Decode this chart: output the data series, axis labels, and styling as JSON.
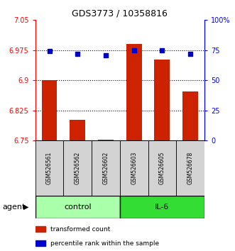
{
  "title": "GDS3773 / 10358816",
  "samples": [
    "GSM526561",
    "GSM526562",
    "GSM526602",
    "GSM526603",
    "GSM526605",
    "GSM526678"
  ],
  "red_values": [
    6.9,
    6.802,
    6.752,
    6.99,
    6.952,
    6.872
  ],
  "blue_values": [
    74,
    72,
    71,
    75,
    75,
    72
  ],
  "ylim_left": [
    6.75,
    7.05
  ],
  "ylim_right": [
    0,
    100
  ],
  "yticks_left": [
    6.75,
    6.825,
    6.9,
    6.975,
    7.05
  ],
  "yticks_right": [
    0,
    25,
    50,
    75,
    100
  ],
  "yticklabels_left": [
    "6.75",
    "6.825",
    "6.9",
    "6.975",
    "7.05"
  ],
  "yticklabels_right": [
    "0",
    "25",
    "50",
    "75",
    "100%"
  ],
  "grid_lines": [
    6.975,
    6.9,
    6.825
  ],
  "groups": [
    {
      "label": "control",
      "indices": [
        0,
        1,
        2
      ],
      "color": "#AAFFAA"
    },
    {
      "label": "IL-6",
      "indices": [
        3,
        4,
        5
      ],
      "color": "#33DD33"
    }
  ],
  "bar_color": "#CC2200",
  "marker_color": "#0000CC",
  "bar_width": 0.55,
  "agent_label": "agent",
  "legend_red": "transformed count",
  "legend_blue": "percentile rank within the sample",
  "bg_color": "#FFFFFF"
}
